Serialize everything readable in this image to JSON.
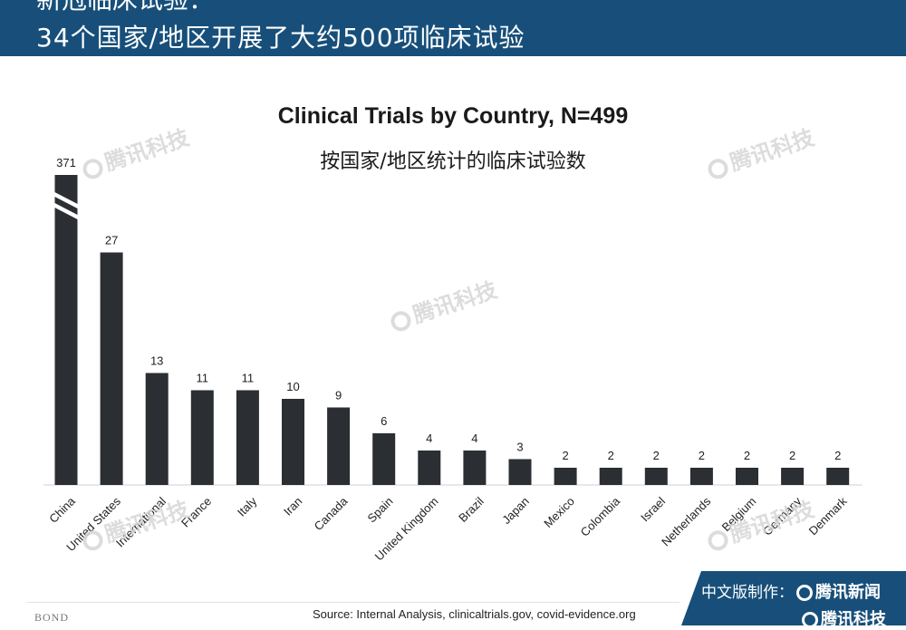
{
  "header": {
    "line1": "新冠临床试验：",
    "line2": "34个国家/地区开展了大约500项临床试验"
  },
  "watermark": "腾讯科技",
  "badge": {
    "credit_label": "中文版制作：",
    "brand": "腾讯新闻",
    "brand2": "腾讯科技"
  },
  "footer": {
    "source": "Source: Internal Analysis, clinicaltrials.gov, covid-evidence.org",
    "bond": "BOND"
  },
  "colors": {
    "header": "#174f7a",
    "bar": "#2b2e33"
  },
  "chart_data": {
    "type": "bar",
    "title": "Clinical Trials by Country, N=499",
    "subtitle": "按国家/地区统计的临床试验数",
    "categories": [
      "China",
      "United States",
      "International",
      "France",
      "Italy",
      "Iran",
      "Canada",
      "Spain",
      "United Kingdom",
      "Brazil",
      "Japan",
      "Mexico",
      "Colombia",
      "Israel",
      "Netherlands",
      "Belgium",
      "Germany",
      "Denmark"
    ],
    "values": [
      371,
      27,
      13,
      11,
      11,
      10,
      9,
      6,
      4,
      4,
      3,
      2,
      2,
      2,
      2,
      2,
      2,
      2
    ],
    "axis_break": "China",
    "ylim": [
      0,
      36
    ],
    "xlabel": "",
    "ylabel": "",
    "grid": false
  }
}
